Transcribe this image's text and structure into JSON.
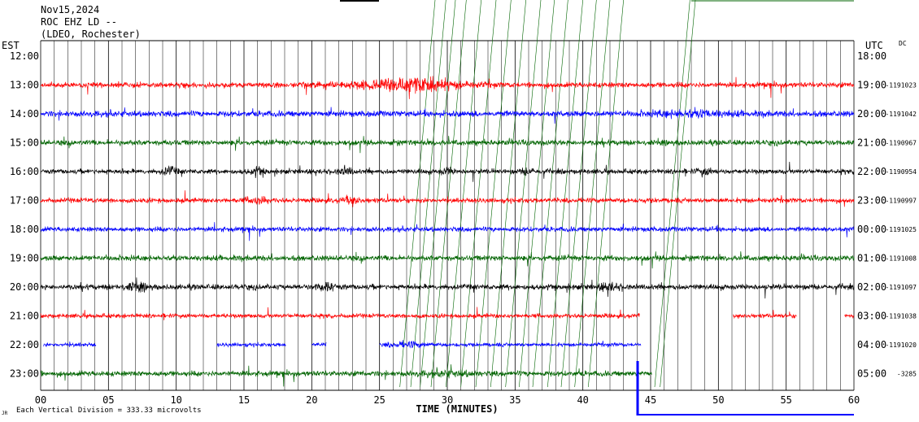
{
  "header": {
    "date": "Nov15,2024",
    "station": "ROC EHZ LD --",
    "network": "(LDEO, Rochester)"
  },
  "axes": {
    "left_tz": "EST",
    "right_tz": "UTC",
    "dc_label": "DC",
    "xlabel": "TIME (MINUTES)",
    "scale_note": "Each Vertical Division =  333.33 microvolts",
    "scale_mark": "JR"
  },
  "chart_data": {
    "type": "line",
    "title": "Nov15,2024 ROC EHZ LD -- (LDEO, Rochester)",
    "xlabel": "TIME (MINUTES)",
    "x_ticks": [
      "00",
      "05",
      "10",
      "15",
      "20",
      "25",
      "30",
      "35",
      "40",
      "45",
      "50",
      "55",
      "60"
    ],
    "xlim": [
      0,
      60
    ],
    "grid": true,
    "est_top_label": "12:00",
    "utc_top_label": "18:00",
    "rows": [
      {
        "est": "13:00",
        "utc": "19:00",
        "dc": "-1191023",
        "color": "#ff0000",
        "amp": 1.0
      },
      {
        "est": "14:00",
        "utc": "20:00",
        "dc": "-1191042",
        "color": "#0000ff",
        "amp": 1.1
      },
      {
        "est": "15:00",
        "utc": "21:00",
        "dc": "-1190967",
        "color": "#006400",
        "amp": 1.0
      },
      {
        "est": "16:00",
        "utc": "22:00",
        "dc": "-1190954",
        "color": "#000000",
        "amp": 0.9
      },
      {
        "est": "17:00",
        "utc": "23:00",
        "dc": "-1190997",
        "color": "#ff0000",
        "amp": 0.9
      },
      {
        "est": "18:00",
        "utc": "00:00",
        "dc": "-1191025",
        "color": "#0000ff",
        "amp": 0.9
      },
      {
        "est": "19:00",
        "utc": "01:00",
        "dc": "-1191008",
        "color": "#006400",
        "amp": 1.0
      },
      {
        "est": "20:00",
        "utc": "02:00",
        "dc": "-1191097",
        "color": "#000000",
        "amp": 1.0
      },
      {
        "est": "21:00",
        "utc": "03:00",
        "dc": "-1191038",
        "color": "#ff0000",
        "amp": 0.8
      },
      {
        "est": "22:00",
        "utc": "04:00",
        "dc": "-1191020",
        "color": "#0000ff",
        "amp": 0.7
      },
      {
        "est": "23:00",
        "utc": "05:00",
        "dc": "-3285",
        "color": "#006400",
        "amp": 1.0
      }
    ]
  },
  "colors": {
    "red": "#ff0000",
    "blue": "#0000ff",
    "green": "#006400",
    "black": "#000000",
    "grid": "#000000"
  }
}
